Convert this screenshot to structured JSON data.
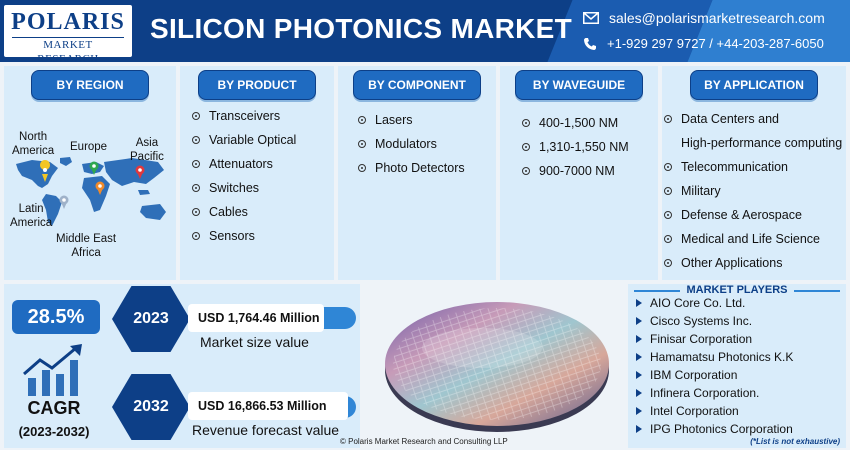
{
  "header": {
    "logo_main": "POLARIS",
    "logo_sub": "MARKET RESEARCH",
    "title": "SILICON PHOTONICS MARKET",
    "email": "sales@polarismarketresearch.com",
    "phone": "+1-929 297 9727  / +44-203-287-6050"
  },
  "region": {
    "label": "BY REGION",
    "map_labels": {
      "north_america": "North\nAmerica",
      "europe": "Europe",
      "asia_pacific": "Asia\nPacific",
      "latin_america": "Latin\nAmerica",
      "middle_east_africa": "Middle East\nAfrica"
    }
  },
  "product": {
    "label": "BY PRODUCT",
    "items": [
      "Transceivers",
      "Variable Optical",
      "Attenuators",
      "Switches",
      "Cables",
      "Sensors"
    ]
  },
  "component": {
    "label": "BY COMPONENT",
    "items": [
      "Lasers",
      "Modulators",
      "Photo Detectors"
    ]
  },
  "waveguide": {
    "label": "BY WAVEGUIDE",
    "items": [
      "400-1,500 NM",
      "1,310-1,550 NM",
      "900-7000 NM"
    ]
  },
  "application": {
    "label": "BY APPLICATION",
    "items": [
      "Data Centers and",
      "High-performance computing",
      "Telecommunication",
      "Military",
      "Defense & Aerospace",
      "Medical and Life Science",
      "Other Applications"
    ]
  },
  "stats": {
    "cagr_value": "28.5%",
    "cagr_label": "CAGR",
    "cagr_period": "(2023-2032)",
    "year_1": "2023",
    "value_1": "USD 1,764.46 Million",
    "caption_1": "Market size value",
    "year_2": "2032",
    "value_2": "USD 16,866.53 Million",
    "caption_2": "Revenue forecast value"
  },
  "credit": "© Polaris Market Research and Consulting LLP",
  "players": {
    "title": "MARKET PLAYERS",
    "items": [
      "AIO Core Co. Ltd.",
      "Cisco Systems Inc.",
      "Finisar Corporation",
      "Hamamatsu Photonics K.K",
      "IBM Corporation",
      "Infinera Corporation.",
      "Intel Corporation",
      "IPG Photonics Corporation"
    ],
    "note": "(*List is not exhaustive)"
  },
  "colors": {
    "navy": "#0d3f87",
    "blue": "#1f6bc1",
    "light_blue": "#2f86d6",
    "panel_bg": "#d9ecfa"
  }
}
